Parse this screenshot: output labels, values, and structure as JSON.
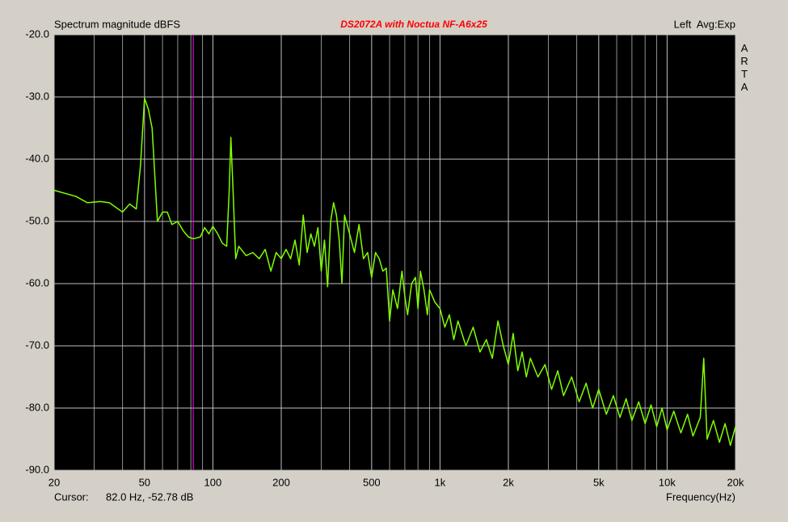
{
  "chart_data": {
    "type": "line",
    "title": "DS2072A with Noctua NF-A6x25",
    "ylabel": "Spectrum magnitude dBFS",
    "status": "Left  Avg:Exp",
    "brand": "ARTA",
    "xlabel": "Frequency(Hz)",
    "cursor": {
      "label": "Cursor:",
      "text": "82.0 Hz, -52.78 dB",
      "x": 82,
      "color": "#ff00ff"
    },
    "xlog": true,
    "grid": true,
    "xlim": [
      20,
      20000
    ],
    "ylim": [
      -90,
      -20
    ],
    "xticks": [
      20,
      50,
      100,
      200,
      500,
      {
        "value": 1000,
        "label": "1k"
      },
      {
        "value": 2000,
        "label": "2k"
      },
      {
        "value": 5000,
        "label": "5k"
      },
      {
        "value": 10000,
        "label": "10k"
      },
      {
        "value": 20000,
        "label": "20k"
      }
    ],
    "xminorticks": [
      30,
      40,
      60,
      70,
      80,
      90,
      300,
      400,
      600,
      700,
      800,
      900,
      3000,
      4000,
      6000,
      7000,
      8000,
      9000
    ],
    "yticks": [
      {
        "value": -20,
        "label": "-20.0"
      },
      {
        "value": -30,
        "label": "-30.0"
      },
      {
        "value": -40,
        "label": "-40.0"
      },
      {
        "value": -50,
        "label": "-50.0"
      },
      {
        "value": -60,
        "label": "-60.0"
      },
      {
        "value": -70,
        "label": "-70.0"
      },
      {
        "value": -80,
        "label": "-80.0"
      },
      {
        "value": -90,
        "label": "-90.0"
      }
    ],
    "x": [
      20,
      25,
      28,
      32,
      35,
      40,
      43,
      46,
      48,
      50,
      52,
      54,
      57,
      60,
      63,
      66,
      70,
      74,
      78,
      82,
      88,
      92,
      96,
      100,
      105,
      110,
      115,
      118,
      120,
      123,
      126,
      130,
      140,
      150,
      160,
      170,
      180,
      190,
      200,
      210,
      220,
      230,
      240,
      250,
      260,
      270,
      280,
      290,
      300,
      310,
      320,
      330,
      340,
      350,
      360,
      370,
      380,
      400,
      420,
      440,
      460,
      480,
      500,
      520,
      540,
      560,
      580,
      600,
      620,
      650,
      680,
      700,
      720,
      750,
      780,
      800,
      820,
      850,
      880,
      900,
      950,
      1000,
      1050,
      1100,
      1150,
      1200,
      1300,
      1400,
      1500,
      1600,
      1700,
      1800,
      1900,
      2000,
      2100,
      2200,
      2300,
      2400,
      2500,
      2700,
      2900,
      3100,
      3300,
      3500,
      3800,
      4100,
      4400,
      4700,
      5000,
      5400,
      5800,
      6200,
      6600,
      7000,
      7500,
      8000,
      8500,
      9000,
      9500,
      10000,
      10700,
      11500,
      12300,
      13000,
      14000,
      14500,
      15000,
      16000,
      17000,
      18000,
      19000,
      20000
    ],
    "series": [
      {
        "color": "#80ff00",
        "values": [
          -45,
          -46,
          -47,
          -46.8,
          -47,
          -48.5,
          -47.2,
          -48,
          -41,
          -30.2,
          -32,
          -35,
          -50,
          -48.5,
          -48.5,
          -50.5,
          -50,
          -51.5,
          -52.5,
          -52.8,
          -52.5,
          -51,
          -52,
          -50.8,
          -52,
          -53.5,
          -54,
          -45,
          -36.5,
          -46,
          -56,
          -54,
          -55.5,
          -55,
          -56,
          -54.5,
          -58,
          -55,
          -56,
          -54.5,
          -56,
          -53,
          -57,
          -49,
          -55,
          -52,
          -54,
          -51,
          -58,
          -53,
          -60.5,
          -50,
          -47,
          -49,
          -53,
          -60,
          -49,
          -52,
          -55,
          -50.5,
          -56,
          -55,
          -59,
          -55,
          -56,
          -58,
          -57.5,
          -66,
          -61,
          -64,
          -58,
          -62,
          -65,
          -60,
          -59,
          -64,
          -58,
          -61,
          -65,
          -61,
          -63,
          -64,
          -67,
          -65,
          -69,
          -66,
          -70,
          -67,
          -71,
          -69,
          -72,
          -66,
          -70,
          -73,
          -68,
          -74,
          -71,
          -75,
          -72,
          -75,
          -73,
          -77,
          -74,
          -78,
          -75,
          -79,
          -76,
          -80,
          -77,
          -81,
          -78,
          -81.5,
          -78.5,
          -82,
          -79,
          -82.5,
          -79.5,
          -83,
          -80,
          -83.5,
          -80.5,
          -84,
          -81,
          -84.5,
          -81.5,
          -72,
          -85,
          -82,
          -85.5,
          -82.5,
          -86,
          -83
        ]
      }
    ]
  }
}
